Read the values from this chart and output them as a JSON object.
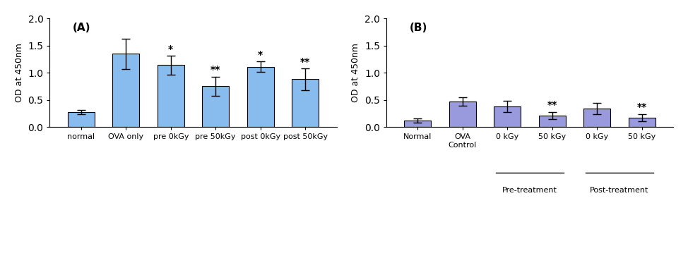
{
  "A": {
    "categories": [
      "normal",
      "OVA only",
      "pre 0kGy",
      "pre 50kGy",
      "post 0kGy",
      "post 50kGy"
    ],
    "values": [
      0.28,
      1.35,
      1.14,
      0.75,
      1.11,
      0.88
    ],
    "errors": [
      0.04,
      0.28,
      0.17,
      0.18,
      0.1,
      0.2
    ],
    "significance": [
      "",
      "",
      "*",
      "**",
      "*",
      "**"
    ],
    "bar_color": "#88BBEE",
    "ylabel": "OD at 450nm",
    "ylim": [
      0,
      2.0
    ],
    "yticks": [
      0.0,
      0.5,
      1.0,
      1.5,
      2.0
    ],
    "label": "(A)"
  },
  "B": {
    "categories": [
      "Normal",
      "OVA\nControl",
      "0 kGy",
      "50 kGy",
      "0 kGy",
      "50 kGy"
    ],
    "values": [
      0.12,
      0.47,
      0.38,
      0.21,
      0.34,
      0.17
    ],
    "errors": [
      0.04,
      0.08,
      0.1,
      0.07,
      0.1,
      0.07
    ],
    "significance": [
      "",
      "",
      "",
      "**",
      "",
      "**"
    ],
    "bar_color": "#9999DD",
    "ylabel": "OD at 450nm",
    "ylim": [
      0,
      2.0
    ],
    "yticks": [
      0.0,
      0.5,
      1.0,
      1.5,
      2.0
    ],
    "label": "(B)",
    "group_labels": [
      "Pre-treatment",
      "Post-treatment"
    ],
    "group_ranges": [
      [
        2,
        3
      ],
      [
        4,
        5
      ]
    ]
  }
}
